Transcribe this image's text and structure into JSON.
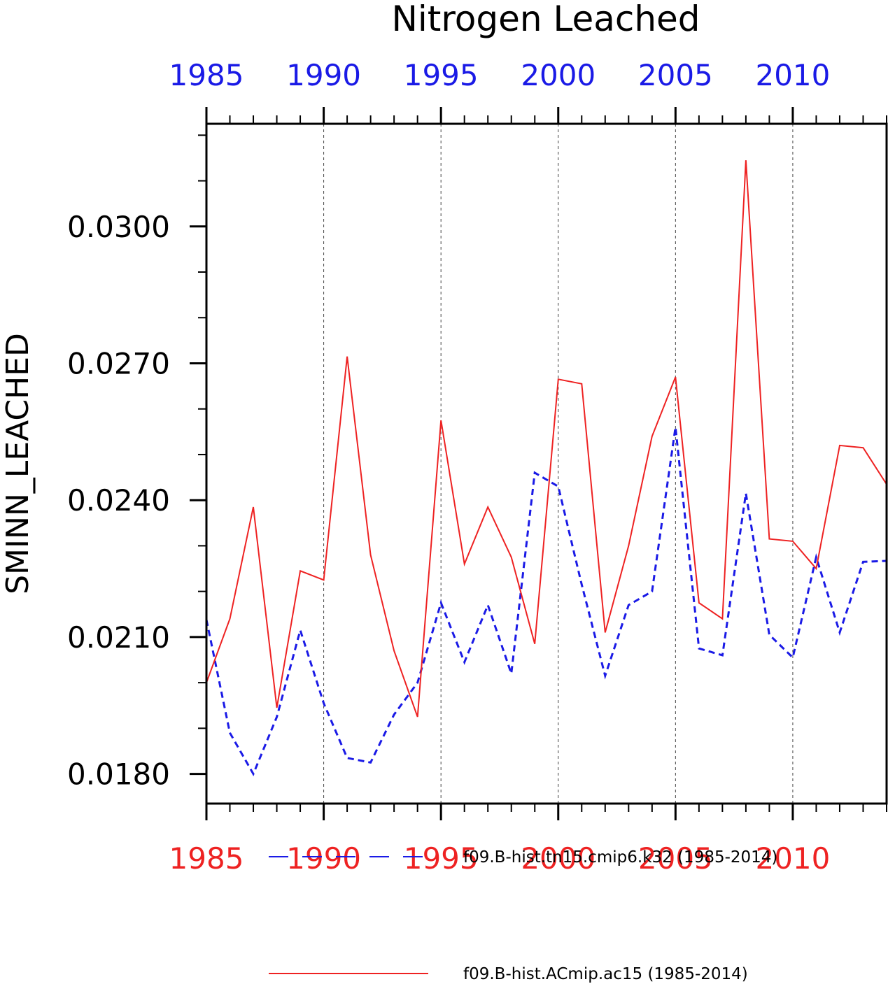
{
  "chart_data": {
    "type": "line",
    "title": "Nitrogen Leached",
    "ylabel": "SMINN_LEACHED",
    "xlabel": "",
    "xlim": [
      1985,
      2014
    ],
    "ylim": [
      0.01735,
      0.03225
    ],
    "x_major_ticks": [
      1985,
      1990,
      1995,
      2000,
      2005,
      2010
    ],
    "x_tick_labels": [
      "1985",
      "1990",
      "1995",
      "2000",
      "2005",
      "2010"
    ],
    "y_major_ticks": [
      0.018,
      0.021,
      0.024,
      0.027,
      0.03
    ],
    "y_tick_labels": [
      "0.0180",
      "0.0210",
      "0.0240",
      "0.0270",
      "0.0300"
    ],
    "y_minor_step": 0.001,
    "grid": "vertical dashed at major x ticks",
    "legend_position": "bottom",
    "x": [
      1985,
      1986,
      1987,
      1988,
      1989,
      1990,
      1991,
      1992,
      1993,
      1994,
      1995,
      1996,
      1997,
      1998,
      1999,
      2000,
      2001,
      2002,
      2003,
      2004,
      2005,
      2006,
      2007,
      2008,
      2009,
      2010,
      2011,
      2012,
      2013,
      2014
    ],
    "series": [
      {
        "name": "f09.B-hist.tn15.cmip6.k32 (1985-2014)",
        "color": "#1a1ae6",
        "style": "dashed",
        "values": [
          0.02138,
          0.0189,
          0.018,
          0.01925,
          0.02115,
          0.01955,
          0.01835,
          0.01825,
          0.0193,
          0.02,
          0.02175,
          0.02045,
          0.0217,
          0.0202,
          0.0246,
          0.0243,
          0.02215,
          0.02015,
          0.0217,
          0.022,
          0.0256,
          0.02075,
          0.0206,
          0.02415,
          0.02105,
          0.02055,
          0.02275,
          0.0211,
          0.02265,
          0.02267
        ]
      },
      {
        "name": "f09.B-hist.ACmip.ac15 (1985-2014)",
        "color": "#ee2222",
        "style": "solid",
        "values": [
          0.02,
          0.0214,
          0.02385,
          0.01945,
          0.02245,
          0.02225,
          0.02715,
          0.0228,
          0.0207,
          0.01925,
          0.02575,
          0.0226,
          0.02385,
          0.02275,
          0.02085,
          0.02665,
          0.02655,
          0.0211,
          0.023,
          0.0254,
          0.0267,
          0.02175,
          0.0214,
          0.03145,
          0.02315,
          0.0231,
          0.0225,
          0.0252,
          0.02515,
          0.02435
        ]
      }
    ]
  }
}
